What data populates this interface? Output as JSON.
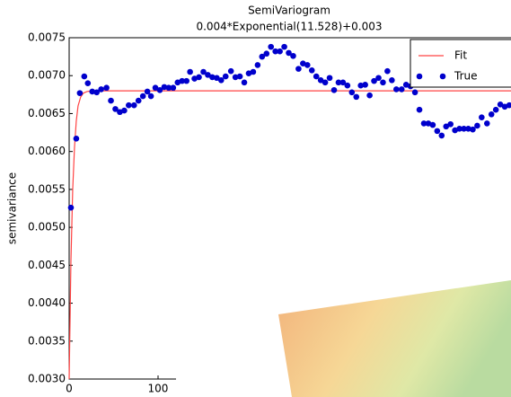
{
  "chart_data": {
    "type": "line",
    "title": "SemiVariogram",
    "subtitle": "0.004*Exponential(11.528)+0.003",
    "y_label": "semivariance",
    "xlim": [
      0,
      497
    ],
    "xticks": [
      0,
      100
    ],
    "ylim": [
      0.003,
      0.0075
    ],
    "yticks": [
      {
        "value": 0.003,
        "label": "0.0030"
      },
      0.0035,
      {
        "value": 0.004,
        "label": "0.0040"
      },
      0.0045,
      {
        "value": 0.005,
        "label": "0.0050"
      },
      0.0055,
      {
        "value": 0.006,
        "label": "0.0060"
      },
      0.0065,
      {
        "value": 0.007,
        "label": "0.0070"
      },
      0.0075
    ],
    "legend": "upper right",
    "series": [
      {
        "name": "Fit",
        "color": "#ff4444",
        "style": "line",
        "x": [
          0,
          2,
          4,
          6,
          8,
          10,
          13,
          16,
          20,
          25,
          30,
          40,
          497
        ],
        "values": [
          0.003,
          0.00455,
          0.0055,
          0.00605,
          0.0064,
          0.0066,
          0.00672,
          0.00677,
          0.00679,
          0.0068,
          0.0068,
          0.0068,
          0.0068
        ]
      },
      {
        "name": "True",
        "color": "#0000cc",
        "style": "marker",
        "x": [
          2,
          8,
          12,
          17,
          21,
          26,
          31,
          36,
          42,
          47,
          52,
          57,
          62,
          67,
          73,
          78,
          83,
          88,
          92,
          97,
          102,
          107,
          112,
          117,
          122,
          127,
          132,
          136,
          141,
          146,
          151,
          156,
          161,
          166,
          171,
          176,
          182,
          187,
          192,
          197,
          202,
          207,
          212,
          217,
          222,
          227,
          232,
          237,
          242,
          247,
          252,
          258,
          263,
          268,
          273,
          278,
          283,
          288,
          293,
          298,
          303,
          308,
          313,
          318,
          323,
          328,
          333,
          338,
          343,
          348,
          353,
          358,
          363,
          368,
          374,
          379,
          384,
          389,
          394,
          399,
          404,
          409,
          414,
          419,
          424,
          429,
          434,
          439,
          444,
          449,
          454,
          459,
          464,
          470,
          475,
          480,
          485,
          490,
          495
        ],
        "values": [
          0.00526,
          0.00617,
          0.00677,
          0.00699,
          0.0069,
          0.00679,
          0.00678,
          0.00682,
          0.00684,
          0.00667,
          0.00656,
          0.00652,
          0.00654,
          0.00661,
          0.00661,
          0.00667,
          0.00673,
          0.00679,
          0.00673,
          0.00684,
          0.00681,
          0.00685,
          0.00684,
          0.00684,
          0.00691,
          0.00693,
          0.00693,
          0.00705,
          0.00696,
          0.00698,
          0.00705,
          0.00701,
          0.00698,
          0.00697,
          0.00694,
          0.00699,
          0.00706,
          0.00698,
          0.00699,
          0.00691,
          0.00703,
          0.00705,
          0.00714,
          0.00725,
          0.00729,
          0.00738,
          0.00732,
          0.00732,
          0.00738,
          0.0073,
          0.00726,
          0.00709,
          0.00716,
          0.00714,
          0.00707,
          0.00699,
          0.00694,
          0.00691,
          0.00697,
          0.00681,
          0.00691,
          0.00691,
          0.00687,
          0.00678,
          0.00672,
          0.00687,
          0.00688,
          0.00674,
          0.00693,
          0.00697,
          0.00691,
          0.00706,
          0.00694,
          0.00682,
          0.00682,
          0.00688,
          0.00686,
          0.00678,
          0.00655,
          0.00637,
          0.00637,
          0.00635,
          0.00627,
          0.00621,
          0.00633,
          0.00636,
          0.00628,
          0.0063,
          0.0063,
          0.0063,
          0.00629,
          0.00634,
          0.00645,
          0.00637,
          0.00649,
          0.00655,
          0.00662,
          0.00659,
          0.00661
        ]
      }
    ]
  }
}
